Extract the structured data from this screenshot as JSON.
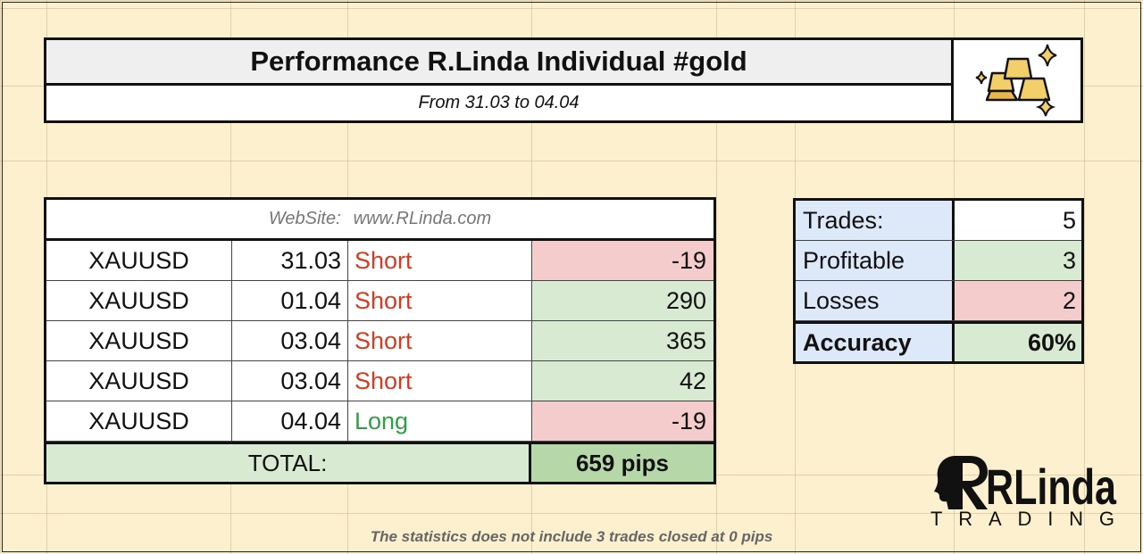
{
  "header": {
    "title": "Performance R.Linda Individual #gold",
    "subtitle": "From 31.03 to 04.04",
    "logo_icon": "gold-bars-icon"
  },
  "trades_table": {
    "website_label": "WebSite:",
    "website_url": "www.RLinda.com",
    "rows": [
      {
        "symbol": "XAUUSD",
        "date": "31.03",
        "direction": "Short",
        "pips": "-19"
      },
      {
        "symbol": "XAUUSD",
        "date": "01.04",
        "direction": "Short",
        "pips": "290"
      },
      {
        "symbol": "XAUUSD",
        "date": "03.04",
        "direction": "Short",
        "pips": "365"
      },
      {
        "symbol": "XAUUSD",
        "date": "03.04",
        "direction": "Short",
        "pips": "42"
      },
      {
        "symbol": "XAUUSD",
        "date": "04.04",
        "direction": "Long",
        "pips": "-19"
      }
    ],
    "total_label": "TOTAL:",
    "total_value": "659 pips"
  },
  "stats": {
    "trades_label": "Trades:",
    "trades_value": "5",
    "profitable_label": "Profitable",
    "profitable_value": "3",
    "losses_label": "Losses",
    "losses_value": "2",
    "accuracy_label": "Accuracy",
    "accuracy_value": "60%"
  },
  "footnote": "The statistics does not include 3 trades closed at 0 pips",
  "brand": {
    "line1": "RLinda",
    "line2": "TRADING"
  },
  "colors": {
    "background": "#fdf0cf",
    "short": "#d63b22",
    "long": "#2ea043",
    "negative_cell": "#f4cccc",
    "positive_cell": "#d9ead3",
    "stat_label": "#dde8f8"
  }
}
